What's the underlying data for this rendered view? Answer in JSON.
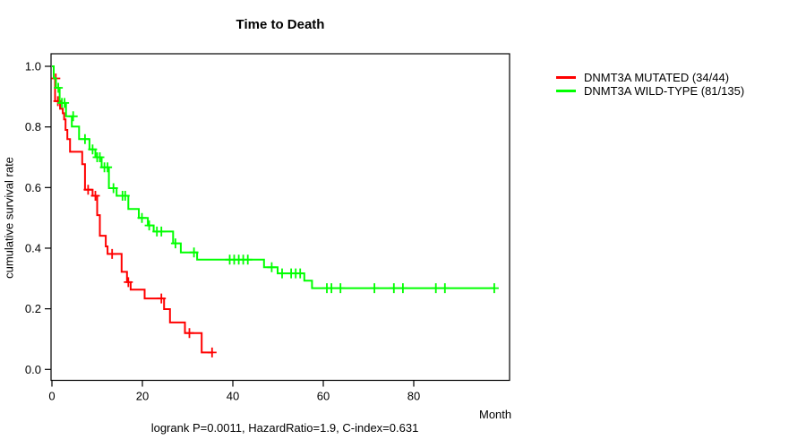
{
  "chart_data": {
    "type": "line",
    "subtype": "kaplan-meier-step",
    "title": "Time to Death",
    "xlabel": "Month",
    "ylabel": "cumulative survival rate",
    "caption": "logrank P=0.0011, HazardRatio=1.9, C-index=0.631",
    "grid": false,
    "legend_position": "right-outside",
    "xlim": [
      0,
      101
    ],
    "ylim": [
      0,
      1
    ],
    "x_ticks": [
      {
        "value": 0,
        "label": "0"
      },
      {
        "value": 20,
        "label": "20"
      },
      {
        "value": 40,
        "label": "40"
      },
      {
        "value": 60,
        "label": "60"
      },
      {
        "value": 80,
        "label": "80"
      }
    ],
    "y_ticks": [
      {
        "value": 0.0,
        "label": "0.0"
      },
      {
        "value": 0.2,
        "label": "0.2"
      },
      {
        "value": 0.4,
        "label": "0.4"
      },
      {
        "value": 0.6,
        "label": "0.6"
      },
      {
        "value": 0.8,
        "label": "0.8"
      },
      {
        "value": 1.0,
        "label": "1.0"
      }
    ],
    "series": [
      {
        "name": "DNMT3A MUTATED (34/44)",
        "color": "#FF0000",
        "end_month": 35.6,
        "steps": [
          [
            0.0,
            1.0
          ],
          [
            0.4,
            0.96
          ],
          [
            0.7,
            0.885
          ],
          [
            1.8,
            0.86
          ],
          [
            2.4,
            0.845
          ],
          [
            2.7,
            0.825
          ],
          [
            3.0,
            0.79
          ],
          [
            3.4,
            0.76
          ],
          [
            4.0,
            0.718
          ],
          [
            6.7,
            0.677
          ],
          [
            7.3,
            0.593
          ],
          [
            9.0,
            0.573
          ],
          [
            10.0,
            0.509
          ],
          [
            10.6,
            0.441
          ],
          [
            11.9,
            0.406
          ],
          [
            12.3,
            0.381
          ],
          [
            15.4,
            0.322
          ],
          [
            16.6,
            0.288
          ],
          [
            17.4,
            0.263
          ],
          [
            20.5,
            0.234
          ],
          [
            24.8,
            0.199
          ],
          [
            26.1,
            0.155
          ],
          [
            29.4,
            0.12
          ],
          [
            33.1,
            0.056
          ]
        ],
        "censor_marks": [
          [
            0.85,
            0.96
          ],
          [
            1.3,
            0.885
          ],
          [
            8.0,
            0.593
          ],
          [
            9.6,
            0.573
          ],
          [
            13.3,
            0.381
          ],
          [
            16.9,
            0.288
          ],
          [
            24.2,
            0.234
          ],
          [
            30.4,
            0.12
          ],
          [
            35.4,
            0.056
          ]
        ]
      },
      {
        "name": "DNMT3A WILD-TYPE (81/135)",
        "color": "#00FF00",
        "end_month": 97.8,
        "steps": [
          [
            0.0,
            1.0
          ],
          [
            0.4,
            0.961
          ],
          [
            0.9,
            0.929
          ],
          [
            1.7,
            0.879
          ],
          [
            3.1,
            0.835
          ],
          [
            4.4,
            0.801
          ],
          [
            6.0,
            0.76
          ],
          [
            8.3,
            0.726
          ],
          [
            9.6,
            0.7
          ],
          [
            11.0,
            0.667
          ],
          [
            12.6,
            0.598
          ],
          [
            14.3,
            0.573
          ],
          [
            16.9,
            0.529
          ],
          [
            19.2,
            0.5
          ],
          [
            21.2,
            0.475
          ],
          [
            22.5,
            0.455
          ],
          [
            26.8,
            0.416
          ],
          [
            28.5,
            0.386
          ],
          [
            32.1,
            0.362
          ],
          [
            46.9,
            0.337
          ],
          [
            49.9,
            0.317
          ],
          [
            55.8,
            0.293
          ],
          [
            57.5,
            0.268
          ]
        ],
        "censor_marks": [
          [
            1.4,
            0.929
          ],
          [
            2.2,
            0.879
          ],
          [
            2.8,
            0.879
          ],
          [
            4.7,
            0.835
          ],
          [
            7.3,
            0.76
          ],
          [
            9.0,
            0.726
          ],
          [
            10.0,
            0.7
          ],
          [
            10.6,
            0.7
          ],
          [
            11.6,
            0.667
          ],
          [
            12.3,
            0.667
          ],
          [
            13.6,
            0.598
          ],
          [
            15.6,
            0.573
          ],
          [
            16.2,
            0.573
          ],
          [
            19.9,
            0.5
          ],
          [
            21.5,
            0.475
          ],
          [
            23.2,
            0.455
          ],
          [
            24.2,
            0.455
          ],
          [
            27.3,
            0.416
          ],
          [
            31.4,
            0.386
          ],
          [
            39.3,
            0.362
          ],
          [
            40.3,
            0.362
          ],
          [
            41.3,
            0.362
          ],
          [
            42.3,
            0.362
          ],
          [
            43.3,
            0.362
          ],
          [
            48.6,
            0.337
          ],
          [
            50.9,
            0.317
          ],
          [
            52.9,
            0.317
          ],
          [
            53.9,
            0.317
          ],
          [
            54.9,
            0.317
          ],
          [
            60.8,
            0.268
          ],
          [
            61.8,
            0.268
          ],
          [
            63.8,
            0.268
          ],
          [
            71.3,
            0.268
          ],
          [
            75.6,
            0.268
          ],
          [
            77.6,
            0.268
          ],
          [
            84.9,
            0.268
          ],
          [
            86.9,
            0.268
          ],
          [
            97.8,
            0.268
          ]
        ]
      }
    ]
  }
}
